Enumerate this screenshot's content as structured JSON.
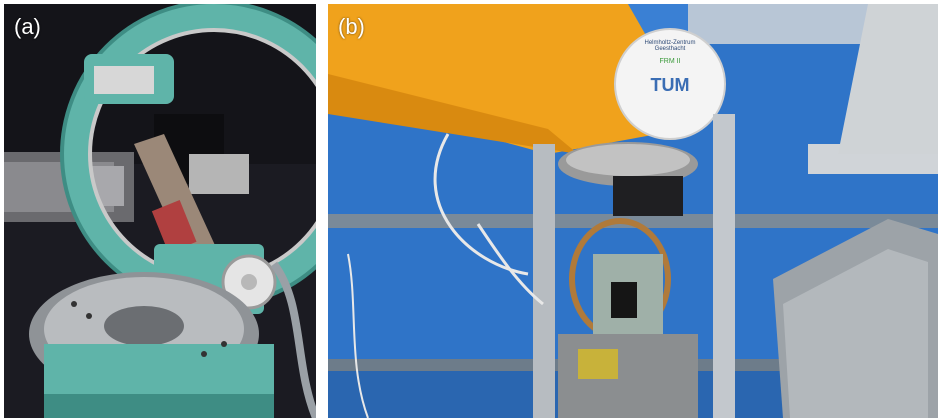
{
  "panels": [
    {
      "label": "(a)"
    },
    {
      "label": "(b)"
    }
  ],
  "logo": {
    "line1": "Helmholtz-Zentrum",
    "line2": "Geesthacht",
    "line3": "FRM II",
    "mark": "TUM"
  },
  "colors": {
    "teal": "#5fb4a9",
    "robot_orange": "#f0a21c",
    "drum_blue": "#2f74c8",
    "dark_bg": "#1b1b22"
  }
}
